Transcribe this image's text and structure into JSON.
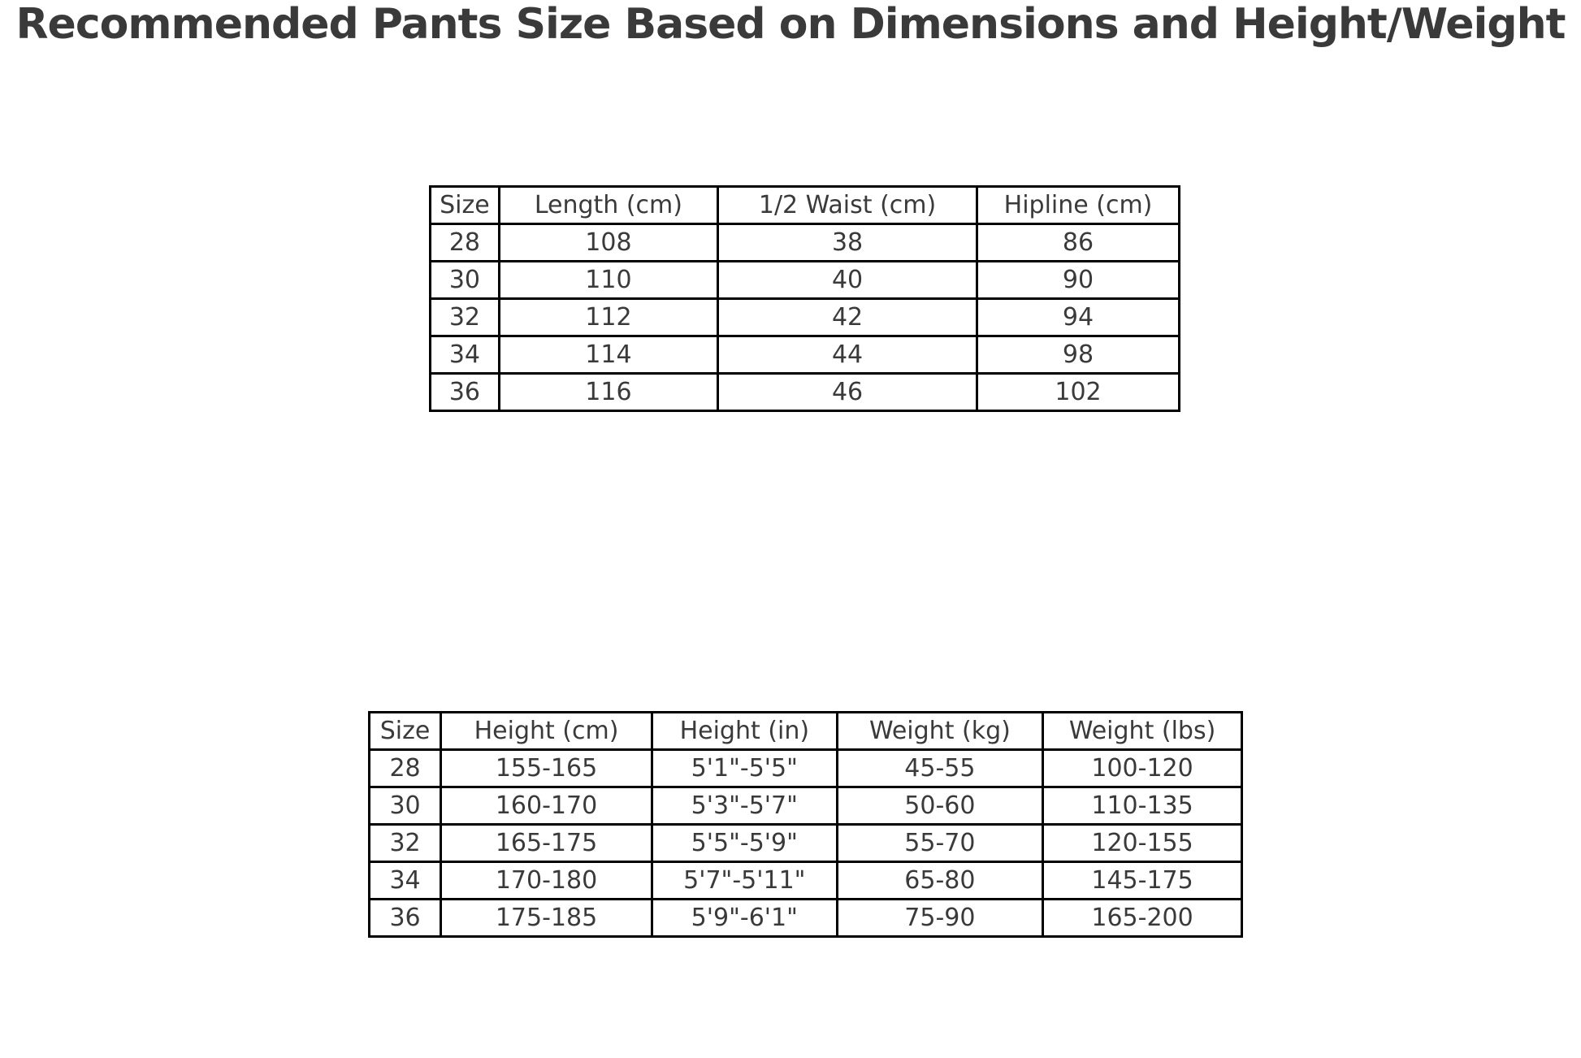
{
  "title": "Recommended Pants Size Based on Dimensions and Height/Weight",
  "colors": {
    "text": "#3a3a3a",
    "border": "#000000",
    "background": "#ffffff"
  },
  "chart_data": [
    {
      "type": "table",
      "name": "pants-dimensions",
      "columns": [
        "Size",
        "Length (cm)",
        "1/2 Waist (cm)",
        "Hipline (cm)"
      ],
      "rows": [
        [
          "28",
          "108",
          "38",
          "86"
        ],
        [
          "30",
          "110",
          "40",
          "90"
        ],
        [
          "32",
          "112",
          "42",
          "94"
        ],
        [
          "34",
          "114",
          "44",
          "98"
        ],
        [
          "36",
          "116",
          "46",
          "102"
        ]
      ]
    },
    {
      "type": "table",
      "name": "height-weight-recommendations",
      "columns": [
        "Size",
        "Height (cm)",
        "Height (in)",
        "Weight (kg)",
        "Weight (lbs)"
      ],
      "rows": [
        [
          "28",
          "155-165",
          "5'1\"-5'5\"",
          "45-55",
          "100-120"
        ],
        [
          "30",
          "160-170",
          "5'3\"-5'7\"",
          "50-60",
          "110-135"
        ],
        [
          "32",
          "165-175",
          "5'5\"-5'9\"",
          "55-70",
          "120-155"
        ],
        [
          "34",
          "170-180",
          "5'7\"-5'11\"",
          "65-80",
          "145-175"
        ],
        [
          "36",
          "175-185",
          "5'9\"-6'1\"",
          "75-90",
          "165-200"
        ]
      ]
    }
  ]
}
